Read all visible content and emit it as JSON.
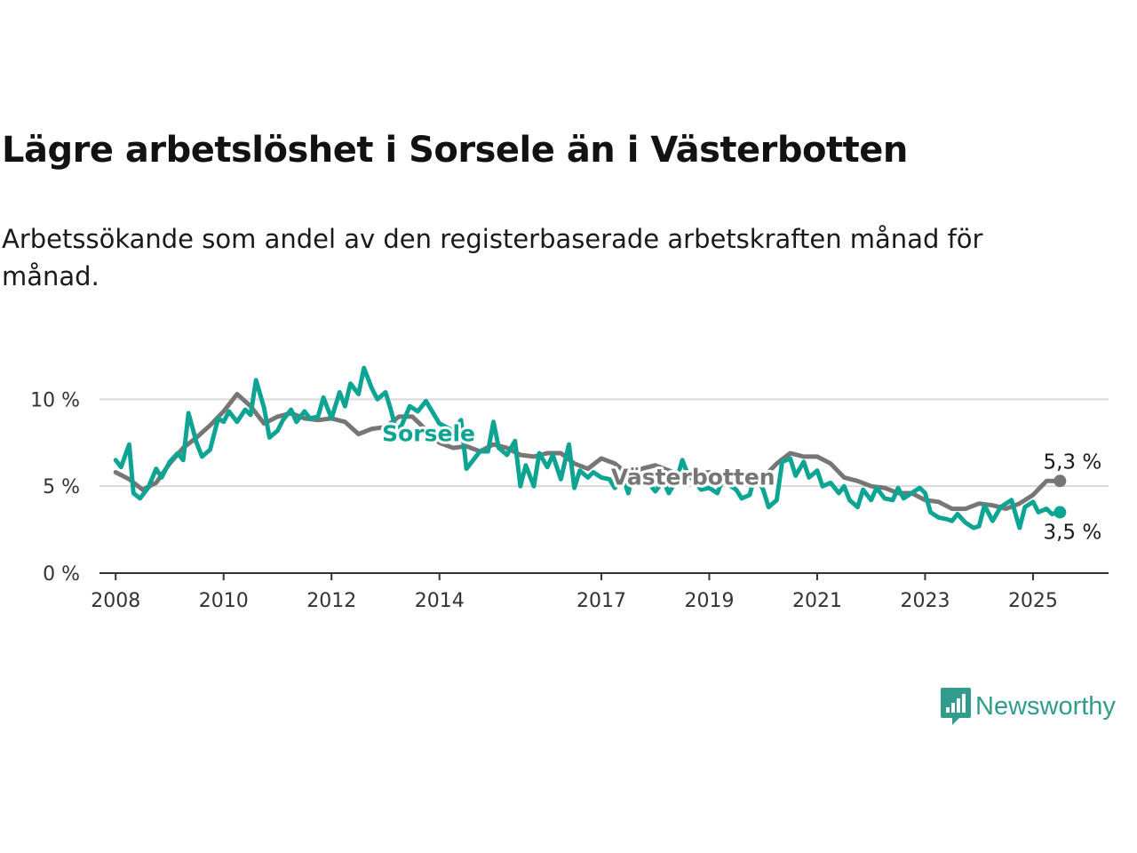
{
  "title": "Lägre arbetslöshet i Sorsele än i Västerbotten",
  "subtitle": "Arbetssökande som andel av den registerbaserade arbetskraften månad för månad.",
  "brand": {
    "name": "Newsworthy",
    "color": "#2f9c8c",
    "icon": "bar-chart-speech-bubble-icon"
  },
  "chart_data": {
    "type": "line",
    "x_range": [
      2007.7,
      2026.4
    ],
    "y_range": [
      0,
      11.5
    ],
    "x_ticks": [
      {
        "value": 2008,
        "label": "2008"
      },
      {
        "value": 2010,
        "label": "2010"
      },
      {
        "value": 2012,
        "label": "2012"
      },
      {
        "value": 2014,
        "label": "2014"
      },
      {
        "value": 2017,
        "label": "2017"
      },
      {
        "value": 2019,
        "label": "2019"
      },
      {
        "value": 2021,
        "label": "2021"
      },
      {
        "value": 2023,
        "label": "2023"
      },
      {
        "value": 2025,
        "label": "2025"
      }
    ],
    "y_ticks": [
      {
        "value": 0,
        "label": "0 %"
      },
      {
        "value": 5,
        "label": "5 %"
      },
      {
        "value": 10,
        "label": "10 %"
      }
    ],
    "grid": "horizontal",
    "series": [
      {
        "name": "Västerbotten",
        "color": "#767676",
        "end_label": "5,3 %",
        "points": [
          [
            2008.0,
            5.8
          ],
          [
            2008.25,
            5.4
          ],
          [
            2008.5,
            4.8
          ],
          [
            2008.75,
            5.2
          ],
          [
            2009.0,
            6.3
          ],
          [
            2009.25,
            7.2
          ],
          [
            2009.5,
            7.8
          ],
          [
            2009.75,
            8.5
          ],
          [
            2010.0,
            9.3
          ],
          [
            2010.25,
            10.3
          ],
          [
            2010.5,
            9.6
          ],
          [
            2010.75,
            8.6
          ],
          [
            2011.0,
            9.0
          ],
          [
            2011.25,
            9.2
          ],
          [
            2011.5,
            8.9
          ],
          [
            2011.75,
            8.8
          ],
          [
            2012.0,
            8.9
          ],
          [
            2012.25,
            8.7
          ],
          [
            2012.5,
            8.0
          ],
          [
            2012.75,
            8.3
          ],
          [
            2013.0,
            8.4
          ],
          [
            2013.25,
            9.0
          ],
          [
            2013.5,
            9.0
          ],
          [
            2014.0,
            7.5
          ],
          [
            2014.25,
            7.2
          ],
          [
            2014.5,
            7.3
          ],
          [
            2014.75,
            7.0
          ],
          [
            2015.0,
            7.4
          ],
          [
            2015.25,
            7.2
          ],
          [
            2015.5,
            6.8
          ],
          [
            2015.75,
            6.7
          ],
          [
            2016.0,
            6.9
          ],
          [
            2016.25,
            6.9
          ],
          [
            2016.5,
            6.3
          ],
          [
            2016.75,
            6.0
          ],
          [
            2017.0,
            6.6
          ],
          [
            2017.25,
            6.3
          ],
          [
            2017.5,
            5.7
          ],
          [
            2017.75,
            6.0
          ],
          [
            2018.0,
            6.2
          ],
          [
            2018.25,
            5.9
          ],
          [
            2018.5,
            5.6
          ],
          [
            2018.75,
            5.7
          ],
          [
            2019.0,
            5.8
          ],
          [
            2019.25,
            5.5
          ],
          [
            2019.5,
            5.2
          ],
          [
            2019.75,
            5.3
          ],
          [
            2020.0,
            5.5
          ],
          [
            2020.25,
            6.3
          ],
          [
            2020.5,
            6.9
          ],
          [
            2020.75,
            6.7
          ],
          [
            2021.0,
            6.7
          ],
          [
            2021.25,
            6.3
          ],
          [
            2021.5,
            5.5
          ],
          [
            2021.75,
            5.3
          ],
          [
            2022.0,
            5.0
          ],
          [
            2022.25,
            4.9
          ],
          [
            2022.5,
            4.6
          ],
          [
            2022.75,
            4.6
          ],
          [
            2023.0,
            4.2
          ],
          [
            2023.25,
            4.1
          ],
          [
            2023.5,
            3.7
          ],
          [
            2023.75,
            3.7
          ],
          [
            2024.0,
            4.0
          ],
          [
            2024.25,
            3.9
          ],
          [
            2024.5,
            3.7
          ],
          [
            2024.75,
            4.0
          ],
          [
            2025.0,
            4.5
          ],
          [
            2025.25,
            5.3
          ],
          [
            2025.5,
            5.3
          ]
        ]
      },
      {
        "name": "Sorsele",
        "color": "#0ea494",
        "end_label": "3,5 %",
        "points": [
          [
            2008.0,
            6.5
          ],
          [
            2008.1,
            6.1
          ],
          [
            2008.25,
            7.4
          ],
          [
            2008.33,
            4.6
          ],
          [
            2008.45,
            4.3
          ],
          [
            2008.6,
            4.9
          ],
          [
            2008.75,
            6.0
          ],
          [
            2008.85,
            5.5
          ],
          [
            2009.0,
            6.4
          ],
          [
            2009.15,
            6.9
          ],
          [
            2009.25,
            6.5
          ],
          [
            2009.35,
            9.2
          ],
          [
            2009.5,
            7.5
          ],
          [
            2009.6,
            6.7
          ],
          [
            2009.75,
            7.1
          ],
          [
            2009.9,
            8.9
          ],
          [
            2010.0,
            8.7
          ],
          [
            2010.1,
            9.3
          ],
          [
            2010.25,
            8.7
          ],
          [
            2010.4,
            9.4
          ],
          [
            2010.5,
            9.1
          ],
          [
            2010.6,
            11.1
          ],
          [
            2010.75,
            9.5
          ],
          [
            2010.85,
            7.8
          ],
          [
            2011.0,
            8.2
          ],
          [
            2011.1,
            8.8
          ],
          [
            2011.25,
            9.4
          ],
          [
            2011.35,
            8.7
          ],
          [
            2011.5,
            9.3
          ],
          [
            2011.6,
            8.9
          ],
          [
            2011.75,
            9.0
          ],
          [
            2011.85,
            10.1
          ],
          [
            2012.0,
            8.9
          ],
          [
            2012.15,
            10.4
          ],
          [
            2012.25,
            9.6
          ],
          [
            2012.35,
            10.9
          ],
          [
            2012.5,
            10.3
          ],
          [
            2012.6,
            11.8
          ],
          [
            2012.75,
            10.6
          ],
          [
            2012.85,
            10.0
          ],
          [
            2013.0,
            10.4
          ],
          [
            2013.1,
            9.4
          ],
          [
            2013.2,
            8.2
          ],
          [
            2013.3,
            8.5
          ],
          [
            2013.45,
            9.6
          ],
          [
            2013.6,
            9.3
          ],
          [
            2013.75,
            9.9
          ],
          [
            2014.0,
            8.6
          ],
          [
            2014.25,
            8.2
          ],
          [
            2014.4,
            8.8
          ],
          [
            2014.5,
            6.0
          ],
          [
            2014.6,
            6.4
          ],
          [
            2014.75,
            7.0
          ],
          [
            2014.9,
            7.0
          ],
          [
            2015.0,
            8.7
          ],
          [
            2015.1,
            7.2
          ],
          [
            2015.25,
            6.8
          ],
          [
            2015.4,
            7.6
          ],
          [
            2015.5,
            5.0
          ],
          [
            2015.6,
            6.2
          ],
          [
            2015.75,
            5.0
          ],
          [
            2015.85,
            6.9
          ],
          [
            2016.0,
            6.1
          ],
          [
            2016.1,
            6.8
          ],
          [
            2016.25,
            5.4
          ],
          [
            2016.4,
            7.4
          ],
          [
            2016.5,
            4.9
          ],
          [
            2016.6,
            5.9
          ],
          [
            2016.75,
            5.5
          ],
          [
            2016.85,
            5.8
          ],
          [
            2017.0,
            5.5
          ],
          [
            2017.15,
            5.4
          ],
          [
            2017.25,
            4.9
          ],
          [
            2017.4,
            5.5
          ],
          [
            2017.5,
            4.6
          ],
          [
            2017.6,
            5.9
          ],
          [
            2017.75,
            5.1
          ],
          [
            2017.85,
            5.3
          ],
          [
            2018.0,
            4.7
          ],
          [
            2018.15,
            5.3
          ],
          [
            2018.25,
            4.6
          ],
          [
            2018.4,
            5.4
          ],
          [
            2018.5,
            6.5
          ],
          [
            2018.6,
            5.7
          ],
          [
            2018.75,
            5.2
          ],
          [
            2018.85,
            4.8
          ],
          [
            2019.0,
            4.9
          ],
          [
            2019.15,
            4.6
          ],
          [
            2019.25,
            5.4
          ],
          [
            2019.4,
            5.0
          ],
          [
            2019.5,
            4.8
          ],
          [
            2019.6,
            4.3
          ],
          [
            2019.75,
            4.5
          ],
          [
            2019.85,
            5.7
          ],
          [
            2020.0,
            4.8
          ],
          [
            2020.1,
            3.8
          ],
          [
            2020.25,
            4.2
          ],
          [
            2020.35,
            6.4
          ],
          [
            2020.5,
            6.6
          ],
          [
            2020.6,
            5.6
          ],
          [
            2020.75,
            6.4
          ],
          [
            2020.85,
            5.5
          ],
          [
            2021.0,
            5.9
          ],
          [
            2021.1,
            5.0
          ],
          [
            2021.25,
            5.2
          ],
          [
            2021.4,
            4.6
          ],
          [
            2021.5,
            5.0
          ],
          [
            2021.6,
            4.2
          ],
          [
            2021.75,
            3.8
          ],
          [
            2021.85,
            4.8
          ],
          [
            2022.0,
            4.2
          ],
          [
            2022.1,
            4.9
          ],
          [
            2022.25,
            4.3
          ],
          [
            2022.4,
            4.2
          ],
          [
            2022.5,
            4.9
          ],
          [
            2022.6,
            4.3
          ],
          [
            2022.75,
            4.6
          ],
          [
            2022.9,
            4.9
          ],
          [
            2023.0,
            4.6
          ],
          [
            2023.1,
            3.5
          ],
          [
            2023.25,
            3.2
          ],
          [
            2023.4,
            3.1
          ],
          [
            2023.5,
            3.0
          ],
          [
            2023.6,
            3.4
          ],
          [
            2023.75,
            2.9
          ],
          [
            2023.9,
            2.6
          ],
          [
            2024.0,
            2.7
          ],
          [
            2024.1,
            3.9
          ],
          [
            2024.25,
            3.0
          ],
          [
            2024.4,
            3.8
          ],
          [
            2024.5,
            4.0
          ],
          [
            2024.6,
            4.2
          ],
          [
            2024.75,
            2.6
          ],
          [
            2024.85,
            3.8
          ],
          [
            2025.0,
            4.1
          ],
          [
            2025.1,
            3.5
          ],
          [
            2025.25,
            3.7
          ],
          [
            2025.35,
            3.4
          ],
          [
            2025.5,
            3.5
          ]
        ]
      }
    ],
    "inline_labels": [
      {
        "series": "Sorsele",
        "text": "Sorsele",
        "at": [
          2013.8,
          8.0
        ]
      },
      {
        "series": "Västerbotten",
        "text": "Västerbotten",
        "at": [
          2018.7,
          5.5
        ]
      }
    ]
  }
}
